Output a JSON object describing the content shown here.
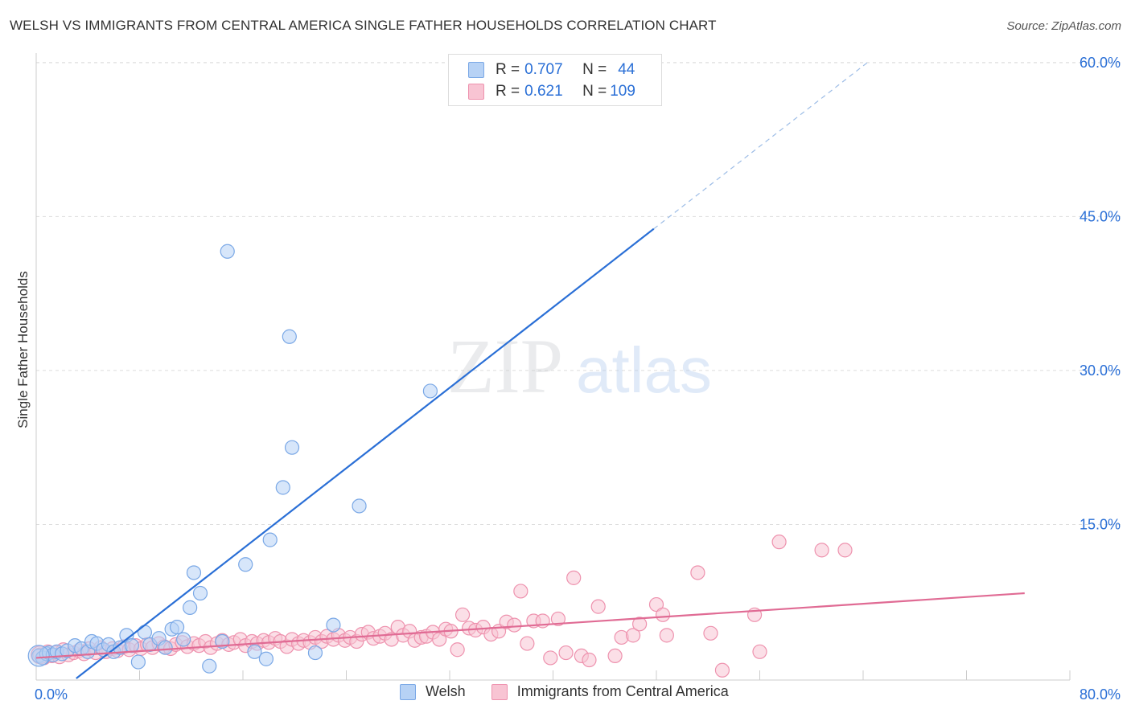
{
  "title": "WELSH VS IMMIGRANTS FROM CENTRAL AMERICA SINGLE FATHER HOUSEHOLDS CORRELATION CHART",
  "source": "Source: ZipAtlas.com",
  "watermark": {
    "zip": "ZIP",
    "atlas": "atlas"
  },
  "legend_top": {
    "rows": [
      {
        "r_label": "R =",
        "r_value": "0.707",
        "n_label": "N =",
        "n_value": "44"
      },
      {
        "r_label": "R =",
        "r_value": "0.621",
        "n_label": "N =",
        "n_value": "109"
      }
    ]
  },
  "bottom_legend": {
    "series1": "Welsh",
    "series2": "Immigrants from Central America"
  },
  "colors": {
    "welsh_fill": "#b7d2f5",
    "welsh_stroke": "#7aa8e6",
    "welsh_line": "#2a6fd6",
    "imm_fill": "#f8c4d3",
    "imm_stroke": "#ee92ae",
    "imm_line": "#e06b94",
    "grid": "#dddddd",
    "tick_label": "#2a6fd6"
  },
  "chart_data": {
    "type": "scatter",
    "title": "WELSH VS IMMIGRANTS FROM CENTRAL AMERICA SINGLE FATHER HOUSEHOLDS CORRELATION CHART",
    "xlabel": "",
    "ylabel": "Single Father Households",
    "xlim": [
      0,
      80
    ],
    "ylim": [
      0,
      62
    ],
    "x_tick_labels": [
      "0.0%",
      "80.0%"
    ],
    "y_ticks": [
      15,
      30,
      45,
      60
    ],
    "y_tick_labels": [
      "15.0%",
      "30.0%",
      "45.0%",
      "60.0%"
    ],
    "grid": true,
    "legend": "bottom",
    "series": [
      {
        "name": "Welsh",
        "r": 0.707,
        "n": 44,
        "trend": {
          "x0": 3.1,
          "y0": 0,
          "x1": 47.8,
          "y1": 43.8,
          "dashed_to_x": 64.5
        },
        "points": [
          [
            0.2,
            2.2
          ],
          [
            0.5,
            2.0
          ],
          [
            0.8,
            2.4
          ],
          [
            1.0,
            2.5
          ],
          [
            1.3,
            2.3
          ],
          [
            1.6,
            2.6
          ],
          [
            2.0,
            2.4
          ],
          [
            2.4,
            2.7
          ],
          [
            3.0,
            3.2
          ],
          [
            3.5,
            2.9
          ],
          [
            4.0,
            2.6
          ],
          [
            4.3,
            3.6
          ],
          [
            4.7,
            3.4
          ],
          [
            5.2,
            2.8
          ],
          [
            5.6,
            3.3
          ],
          [
            6.0,
            2.6
          ],
          [
            6.5,
            3.0
          ],
          [
            7.0,
            4.2
          ],
          [
            7.4,
            3.2
          ],
          [
            7.9,
            1.6
          ],
          [
            8.4,
            4.5
          ],
          [
            8.8,
            3.3
          ],
          [
            9.5,
            3.9
          ],
          [
            10.0,
            3.0
          ],
          [
            10.5,
            4.8
          ],
          [
            10.9,
            5.0
          ],
          [
            11.4,
            3.8
          ],
          [
            11.9,
            6.9
          ],
          [
            12.2,
            10.3
          ],
          [
            12.7,
            8.3
          ],
          [
            13.4,
            1.2
          ],
          [
            14.4,
            3.6
          ],
          [
            14.8,
            41.6
          ],
          [
            16.2,
            11.1
          ],
          [
            16.9,
            2.6
          ],
          [
            17.8,
            1.9
          ],
          [
            18.1,
            13.5
          ],
          [
            19.1,
            18.6
          ],
          [
            19.6,
            33.3
          ],
          [
            19.8,
            22.5
          ],
          [
            21.6,
            2.5
          ],
          [
            23.0,
            5.2
          ],
          [
            25.0,
            16.8
          ],
          [
            30.5,
            28.0
          ]
        ]
      },
      {
        "name": "Immigrants from Central America",
        "r": 0.621,
        "n": 109,
        "trend": {
          "x0": 0,
          "y0": 2.0,
          "x1": 76.5,
          "y1": 8.3
        },
        "points": [
          [
            0.3,
            2.3
          ],
          [
            0.6,
            2.0
          ],
          [
            0.9,
            2.6
          ],
          [
            1.2,
            2.2
          ],
          [
            1.5,
            2.5
          ],
          [
            1.8,
            2.1
          ],
          [
            2.1,
            2.8
          ],
          [
            2.5,
            2.3
          ],
          [
            2.9,
            2.5
          ],
          [
            3.3,
            2.7
          ],
          [
            3.7,
            2.4
          ],
          [
            4.1,
            2.9
          ],
          [
            4.6,
            2.5
          ],
          [
            5.0,
            3.0
          ],
          [
            5.4,
            2.6
          ],
          [
            5.9,
            2.9
          ],
          [
            6.3,
            2.7
          ],
          [
            6.8,
            3.1
          ],
          [
            7.2,
            2.8
          ],
          [
            7.7,
            3.2
          ],
          [
            8.1,
            2.9
          ],
          [
            8.6,
            3.3
          ],
          [
            9.0,
            3.0
          ],
          [
            9.5,
            3.4
          ],
          [
            9.9,
            3.1
          ],
          [
            10.4,
            2.9
          ],
          [
            10.8,
            3.3
          ],
          [
            11.3,
            3.5
          ],
          [
            11.7,
            3.1
          ],
          [
            12.2,
            3.4
          ],
          [
            12.6,
            3.2
          ],
          [
            13.1,
            3.6
          ],
          [
            13.5,
            3.0
          ],
          [
            14.0,
            3.4
          ],
          [
            14.4,
            3.7
          ],
          [
            14.9,
            3.3
          ],
          [
            15.3,
            3.5
          ],
          [
            15.8,
            3.8
          ],
          [
            16.2,
            3.2
          ],
          [
            16.7,
            3.6
          ],
          [
            17.1,
            3.4
          ],
          [
            17.6,
            3.7
          ],
          [
            18.0,
            3.5
          ],
          [
            18.5,
            3.9
          ],
          [
            18.9,
            3.6
          ],
          [
            19.4,
            3.1
          ],
          [
            19.8,
            3.8
          ],
          [
            20.3,
            3.4
          ],
          [
            20.7,
            3.7
          ],
          [
            21.2,
            3.5
          ],
          [
            21.6,
            4.0
          ],
          [
            22.1,
            3.6
          ],
          [
            22.5,
            4.1
          ],
          [
            23.0,
            3.8
          ],
          [
            23.4,
            4.2
          ],
          [
            23.9,
            3.7
          ],
          [
            24.3,
            4.0
          ],
          [
            24.8,
            3.6
          ],
          [
            25.2,
            4.3
          ],
          [
            25.7,
            4.5
          ],
          [
            26.1,
            3.9
          ],
          [
            26.6,
            4.1
          ],
          [
            27.0,
            4.4
          ],
          [
            27.5,
            3.8
          ],
          [
            28.0,
            5.0
          ],
          [
            28.4,
            4.2
          ],
          [
            28.9,
            4.6
          ],
          [
            29.3,
            3.7
          ],
          [
            29.8,
            4.0
          ],
          [
            30.2,
            4.1
          ],
          [
            30.7,
            4.5
          ],
          [
            31.2,
            3.8
          ],
          [
            31.7,
            4.8
          ],
          [
            32.1,
            4.6
          ],
          [
            32.6,
            2.8
          ],
          [
            33.0,
            6.2
          ],
          [
            33.5,
            4.9
          ],
          [
            34.0,
            4.7
          ],
          [
            34.6,
            5.0
          ],
          [
            35.2,
            4.3
          ],
          [
            35.8,
            4.6
          ],
          [
            36.4,
            5.5
          ],
          [
            37.0,
            5.2
          ],
          [
            37.5,
            8.5
          ],
          [
            38.0,
            3.4
          ],
          [
            38.5,
            5.6
          ],
          [
            39.2,
            5.6
          ],
          [
            39.8,
            2.0
          ],
          [
            40.4,
            5.8
          ],
          [
            41.0,
            2.5
          ],
          [
            41.6,
            9.8
          ],
          [
            42.2,
            2.2
          ],
          [
            42.8,
            1.8
          ],
          [
            43.5,
            7.0
          ],
          [
            44.8,
            2.2
          ],
          [
            45.3,
            4.0
          ],
          [
            46.2,
            4.2
          ],
          [
            46.7,
            5.3
          ],
          [
            48.0,
            7.2
          ],
          [
            48.5,
            6.2
          ],
          [
            48.8,
            4.2
          ],
          [
            51.2,
            10.3
          ],
          [
            52.2,
            4.4
          ],
          [
            53.1,
            0.8
          ],
          [
            55.6,
            6.2
          ],
          [
            56.0,
            2.6
          ],
          [
            57.5,
            13.3
          ],
          [
            60.8,
            12.5
          ],
          [
            62.6,
            12.5
          ]
        ]
      }
    ]
  }
}
